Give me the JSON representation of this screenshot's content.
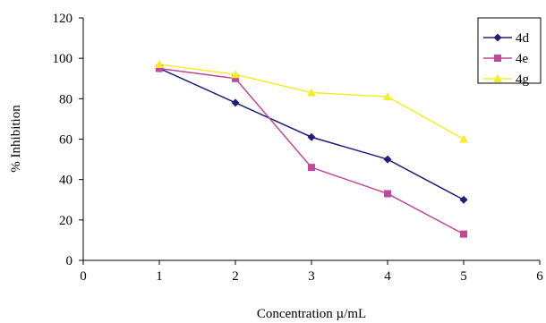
{
  "chart_data": {
    "type": "line",
    "title": "",
    "xlabel": "Concentration µ/mL",
    "ylabel": "% Inhibition",
    "xlim": [
      0,
      6
    ],
    "ylim": [
      0,
      120
    ],
    "xticks": [
      0,
      1,
      2,
      3,
      4,
      5,
      6
    ],
    "yticks": [
      0,
      20,
      40,
      60,
      80,
      100,
      120
    ],
    "grid": false,
    "legend": "top-right",
    "x": [
      1,
      2,
      3,
      4,
      5
    ],
    "series": [
      {
        "name": "4d",
        "marker": "diamond",
        "color": "#1f1f7a",
        "values": [
          95,
          78,
          61,
          50,
          30
        ]
      },
      {
        "name": "4e",
        "marker": "square",
        "color": "#c0499a",
        "values": [
          95,
          90,
          46,
          33,
          13
        ]
      },
      {
        "name": "4g",
        "marker": "triangle",
        "color": "#f2ee2a",
        "values": [
          97,
          92,
          83,
          81,
          60
        ]
      }
    ]
  }
}
